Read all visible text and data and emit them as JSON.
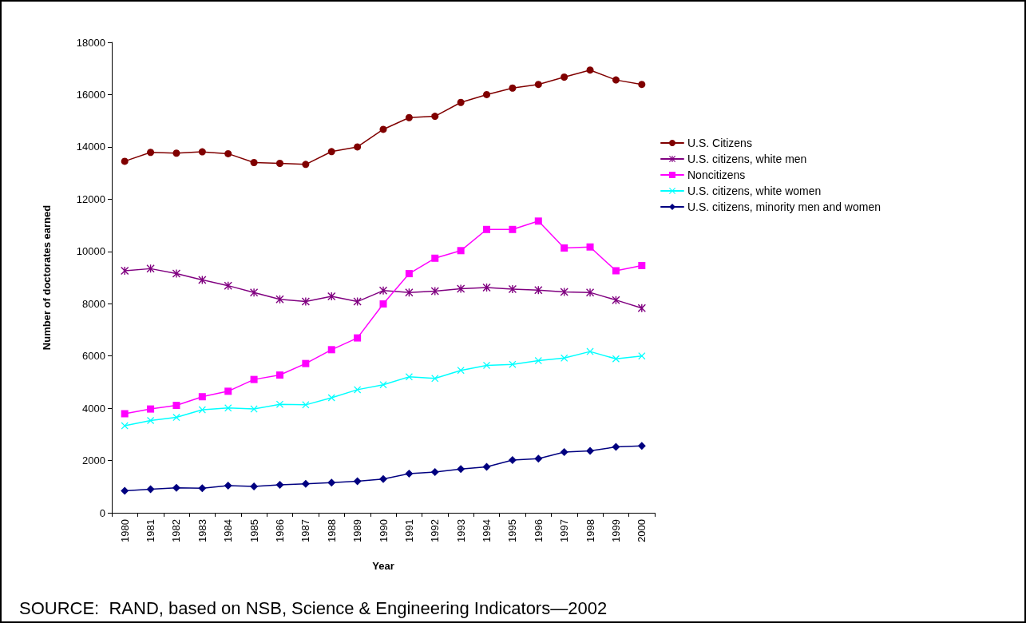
{
  "chart_data": {
    "type": "line",
    "xlabel": "Year",
    "ylabel": "Number of doctorates earned",
    "categories": [
      "1980",
      "1981",
      "1982",
      "1983",
      "1984",
      "1985",
      "1986",
      "1987",
      "1988",
      "1989",
      "1990",
      "1991",
      "1992",
      "1993",
      "1994",
      "1995",
      "1996",
      "1997",
      "1998",
      "1999",
      "2000"
    ],
    "ylim": [
      0,
      18000
    ],
    "yticks": [
      0,
      2000,
      4000,
      6000,
      8000,
      10000,
      12000,
      14000,
      16000,
      18000
    ],
    "grid": false,
    "legend": "right",
    "line_style": "solid",
    "series": [
      {
        "name": "U.S. Citizens",
        "color": "#800000",
        "marker": "circle",
        "values": [
          13450,
          13790,
          13760,
          13810,
          13740,
          13400,
          13370,
          13330,
          13820,
          14000,
          14670,
          15120,
          15170,
          15700,
          16000,
          16250,
          16390,
          16670,
          16940,
          16560,
          16390
        ]
      },
      {
        "name": "U.S. citizens, white men",
        "color": "#800080",
        "marker": "star",
        "values": [
          9260,
          9340,
          9150,
          8910,
          8690,
          8430,
          8170,
          8080,
          8280,
          8080,
          8500,
          8430,
          8480,
          8570,
          8620,
          8560,
          8520,
          8450,
          8430,
          8140,
          7830
        ]
      },
      {
        "name": "Noncitizens",
        "color": "#ff00ff",
        "marker": "square",
        "values": [
          3790,
          3970,
          4110,
          4440,
          4650,
          5100,
          5270,
          5710,
          6240,
          6690,
          7990,
          9150,
          9740,
          10030,
          10840,
          10840,
          11160,
          10130,
          10170,
          9260,
          9460
        ]
      },
      {
        "name": "U.S. citizens, white women",
        "color": "#00ffff",
        "marker": "cross",
        "values": [
          3330,
          3530,
          3650,
          3940,
          4010,
          3970,
          4150,
          4130,
          4400,
          4710,
          4900,
          5200,
          5140,
          5450,
          5640,
          5680,
          5820,
          5920,
          6170,
          5890,
          6000
        ]
      },
      {
        "name": "U.S. citizens, minority men and women",
        "color": "#000080",
        "marker": "diamond",
        "values": [
          840,
          900,
          955,
          940,
          1040,
          1010,
          1070,
          1110,
          1150,
          1210,
          1290,
          1500,
          1560,
          1670,
          1760,
          2020,
          2070,
          2320,
          2370,
          2520,
          2560
        ]
      }
    ],
    "annotations": [
      "SOURCE:  RAND, based on NSB, Science & Engineering Indicators—2002"
    ]
  }
}
